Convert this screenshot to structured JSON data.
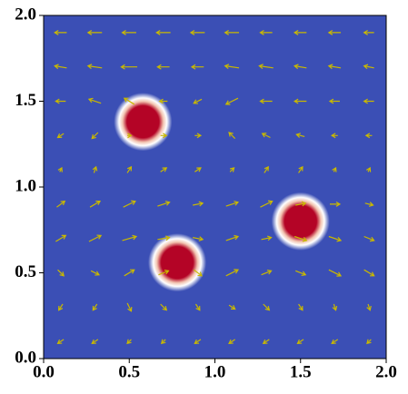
{
  "chart_data": {
    "type": "quiver",
    "xlim": [
      0,
      2
    ],
    "ylim": [
      0,
      2
    ],
    "xticks": [
      {
        "value": 0,
        "label": "0.0"
      },
      {
        "value": 0.5,
        "label": "0.5"
      },
      {
        "value": 1,
        "label": "1.0"
      },
      {
        "value": 1.5,
        "label": "1.5"
      },
      {
        "value": 2,
        "label": "2.0"
      }
    ],
    "yticks": [
      {
        "value": 0,
        "label": "0.0"
      },
      {
        "value": 0.5,
        "label": "0.5"
      },
      {
        "value": 1,
        "label": "1.0"
      },
      {
        "value": 1.5,
        "label": "1.5"
      },
      {
        "value": 2,
        "label": "2.0"
      }
    ],
    "background_color": "#3b4fb5",
    "blob_color": "#b40426",
    "arrow_color": "#c9b800",
    "blobs": {
      "x": [
        0.58,
        0.78,
        1.5
      ],
      "y": [
        1.38,
        0.56,
        0.8
      ],
      "radius": [
        0.17,
        0.17,
        0.17
      ]
    },
    "quiver": {
      "x": [
        0.1,
        0.3,
        0.5,
        0.7,
        0.9,
        1.1,
        1.3,
        1.5,
        1.7,
        1.9
      ],
      "y": [
        1.9,
        1.7,
        1.5,
        1.3,
        1.1,
        0.9,
        0.7,
        0.5,
        0.3,
        0.1
      ],
      "u": [
        [
          -0.6,
          -0.7,
          -0.7,
          -0.7,
          -0.7,
          -0.7,
          -0.6,
          -0.6,
          -0.6,
          -0.5
        ],
        [
          -0.6,
          -0.7,
          -0.8,
          -0.6,
          -0.6,
          -0.7,
          -0.7,
          -0.6,
          -0.6,
          -0.5
        ],
        [
          -0.5,
          -0.6,
          -0.5,
          -0.4,
          -0.4,
          -0.6,
          -0.6,
          -0.6,
          -0.5,
          -0.5
        ],
        [
          -0.3,
          -0.3,
          0.2,
          0.3,
          0.3,
          -0.3,
          -0.4,
          -0.4,
          -0.3,
          -0.3
        ],
        [
          0.1,
          0.1,
          0.2,
          0.3,
          0.3,
          0.2,
          0.2,
          0.2,
          0.1,
          0.1
        ],
        [
          0.4,
          0.5,
          0.6,
          0.6,
          0.5,
          0.6,
          0.6,
          0.5,
          0.5,
          0.4
        ],
        [
          0.5,
          0.6,
          0.7,
          0.6,
          0.5,
          0.6,
          0.5,
          0.6,
          0.6,
          0.5
        ],
        [
          0.3,
          0.4,
          0.5,
          0.5,
          0.4,
          0.6,
          0.5,
          0.5,
          0.6,
          0.5
        ],
        [
          -0.2,
          -0.2,
          0.2,
          0.3,
          0.2,
          0.3,
          0.3,
          0.2,
          0.1,
          0.1
        ],
        [
          -0.3,
          -0.3,
          -0.2,
          -0.2,
          -0.3,
          -0.3,
          -0.3,
          -0.3,
          -0.3,
          -0.2
        ]
      ],
      "v": [
        [
          0,
          0,
          0,
          0,
          0,
          0,
          0,
          0,
          0,
          0
        ],
        [
          0.1,
          0.1,
          0,
          0,
          0,
          0.1,
          0.1,
          0.1,
          0.1,
          0.1
        ],
        [
          0,
          0.2,
          0.3,
          0,
          -0.2,
          -0.3,
          0,
          0,
          0,
          0
        ],
        [
          -0.2,
          -0.3,
          0,
          0,
          0,
          0.3,
          0.2,
          0.1,
          0,
          0
        ],
        [
          0.2,
          0.3,
          0.3,
          0.2,
          0.2,
          0.2,
          0.3,
          0.3,
          0.2,
          0.2
        ],
        [
          0.3,
          0.3,
          0.3,
          0.2,
          0.1,
          0.2,
          0.3,
          0.1,
          0,
          -0.1
        ],
        [
          0.3,
          0.3,
          0.2,
          0.1,
          -0.1,
          0.2,
          0.1,
          -0.2,
          -0.2,
          -0.2
        ],
        [
          -0.3,
          -0.2,
          0.3,
          0.2,
          -0.3,
          0.3,
          0.2,
          -0.2,
          -0.3,
          -0.3
        ],
        [
          -0.3,
          -0.3,
          -0.4,
          -0.3,
          -0.3,
          -0.2,
          -0.3,
          -0.3,
          -0.3,
          -0.3
        ],
        [
          -0.2,
          -0.2,
          -0.2,
          -0.2,
          -0.2,
          -0.2,
          -0.2,
          -0.2,
          -0.2,
          -0.2
        ]
      ]
    }
  }
}
